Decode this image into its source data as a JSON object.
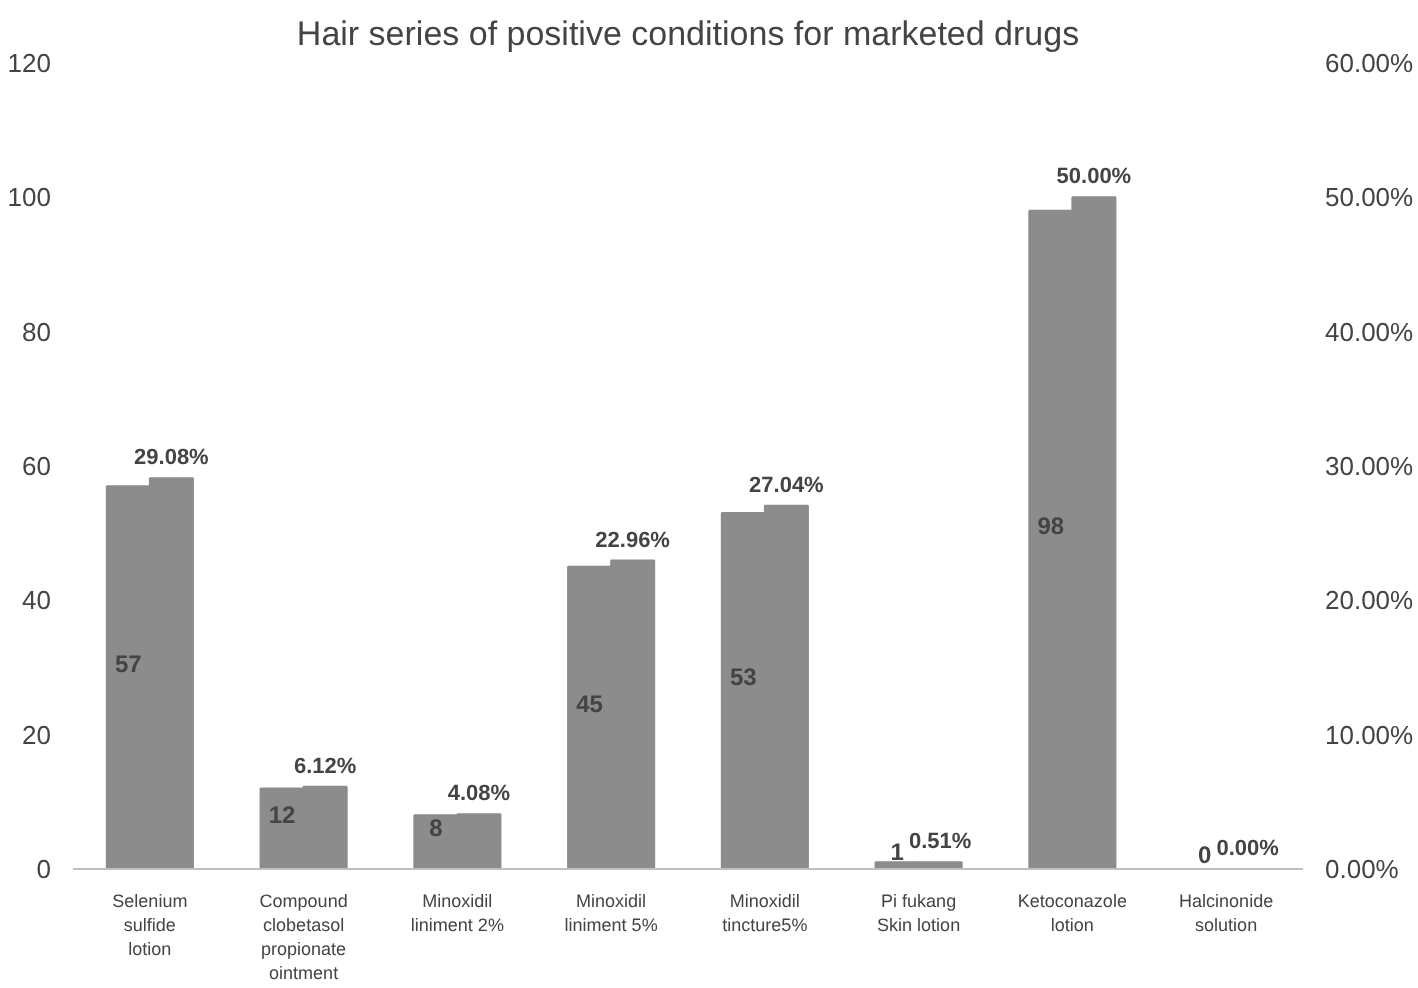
{
  "chart_data": {
    "type": "bar",
    "title": "Hair series of positive conditions for marketed drugs",
    "categories": [
      "Selenium sulfide lotion",
      "Compound clobetasol propionate ointment",
      "Minoxidil liniment 2%",
      "Minoxidil liniment 5%",
      "Minoxidil tincture5%",
      "Pi fukang Skin lotion",
      "Ketoconazole lotion",
      "Halcinonide solution"
    ],
    "series": [
      {
        "color": "#8c8c8c",
        "values": [
          57,
          12,
          8,
          45,
          53,
          1,
          98,
          0
        ],
        "value_labels": [
          "57",
          "12",
          "8",
          "45",
          "53",
          "1",
          "98",
          "0"
        ]
      },
      {
        "color": "#8c8c8c",
        "axis": "y2",
        "values": [
          29.08,
          6.12,
          4.08,
          22.96,
          27.04,
          0.51,
          50.0,
          0.0
        ],
        "value_labels": [
          "29.08%",
          "6.12%",
          "4.08%",
          "22.96%",
          "27.04%",
          "0.51%",
          "50.00%",
          "0.00%"
        ]
      }
    ],
    "ylim": [
      0,
      120
    ],
    "yticks": [
      0,
      20,
      40,
      60,
      80,
      100,
      120
    ],
    "y2lim": [
      0,
      60
    ],
    "y2ticks": [
      {
        "value": 0,
        "label": "0.00%"
      },
      {
        "value": 10,
        "label": "10.00%"
      },
      {
        "value": 20,
        "label": "20.00%"
      },
      {
        "value": 30,
        "label": "30.00%"
      },
      {
        "value": 40,
        "label": "40.00%"
      },
      {
        "value": 50,
        "label": "50.00%"
      },
      {
        "value": 60,
        "label": "60.00%"
      }
    ],
    "grid": false
  }
}
